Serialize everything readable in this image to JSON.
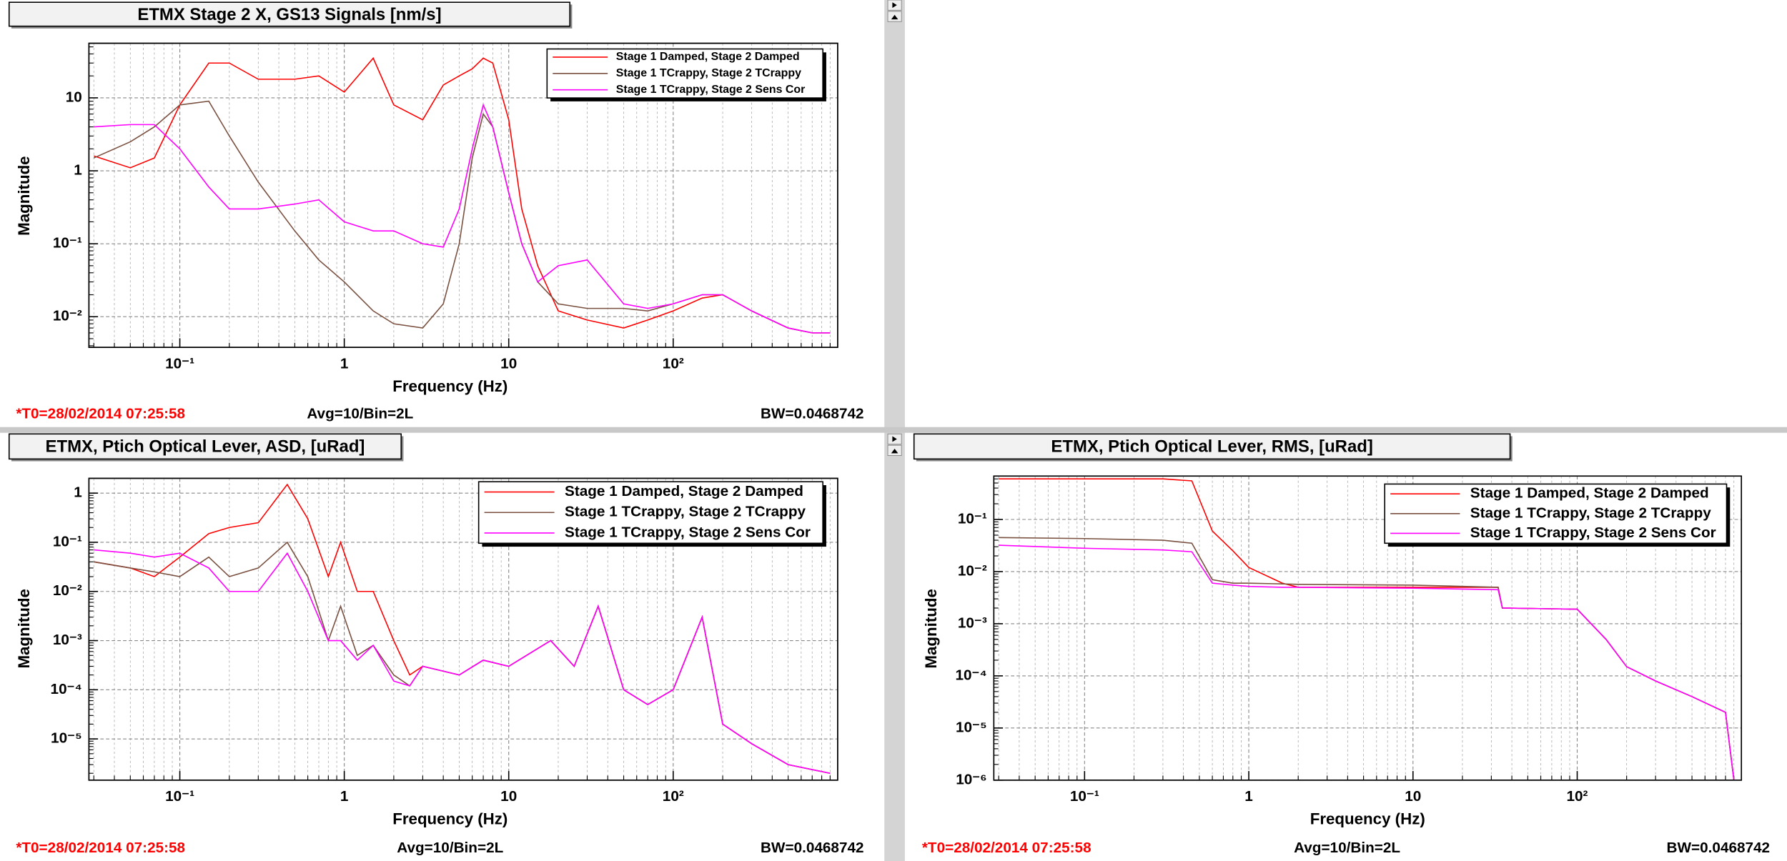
{
  "chart_data": [
    {
      "type": "line",
      "title": "ETMX Stage 2 X, GS13 Signals [nm/s]",
      "xlabel": "Frequency (Hz)",
      "ylabel": "Magnitude",
      "log_x": true,
      "log_y": true,
      "grid": true,
      "legend": "upper right",
      "xlim": [
        0.028,
        1000
      ],
      "ylim": [
        0.0038,
        56
      ],
      "xticks": [
        {
          "value": 0.1,
          "label": "10⁻¹"
        },
        1,
        10,
        {
          "value": 100,
          "label": "10²"
        }
      ],
      "yticks": [
        {
          "value": 0.01,
          "label": "10⁻²"
        },
        {
          "value": 0.1,
          "label": "10⁻¹"
        },
        1,
        10
      ],
      "x": [
        0.03,
        0.05,
        0.07,
        0.1,
        0.15,
        0.2,
        0.3,
        0.5,
        0.7,
        1,
        1.5,
        2,
        3,
        4,
        5,
        6,
        7,
        8,
        10,
        12,
        15,
        20,
        30,
        50,
        70,
        100,
        150,
        200,
        300,
        500,
        700,
        900
      ],
      "series": [
        {
          "name": "Stage 1 Damped, Stage 2 Damped",
          "color": "#ff0000",
          "values": [
            1.6,
            1.1,
            1.5,
            8,
            30,
            30,
            18,
            18,
            20,
            12,
            35,
            8,
            5,
            15,
            20,
            25,
            35,
            30,
            5,
            0.3,
            0.05,
            0.012,
            0.009,
            0.007,
            0.009,
            0.012,
            0.018,
            0.02,
            0.012,
            0.007,
            0.006,
            0.006
          ]
        },
        {
          "name": "Stage 1 TCrappy, Stage 2 TCrappy",
          "color": "#7a5040",
          "values": [
            1.5,
            2.5,
            4,
            8,
            9,
            3,
            0.7,
            0.15,
            0.06,
            0.03,
            0.012,
            0.008,
            0.007,
            0.015,
            0.1,
            1.5,
            6,
            4,
            0.5,
            0.1,
            0.03,
            0.015,
            0.013,
            0.013,
            0.012,
            0.015,
            0.02,
            0.02,
            0.012,
            0.007,
            0.006,
            0.006
          ]
        },
        {
          "name": "Stage 1 TCrappy, Stage 2 Sens Cor",
          "color": "#ff00ff",
          "values": [
            4,
            4.3,
            4.3,
            2,
            0.6,
            0.3,
            0.3,
            0.35,
            0.4,
            0.2,
            0.15,
            0.15,
            0.1,
            0.09,
            0.3,
            2,
            8,
            4,
            0.5,
            0.1,
            0.03,
            0.05,
            0.06,
            0.015,
            0.013,
            0.015,
            0.02,
            0.02,
            0.012,
            0.007,
            0.006,
            0.006
          ]
        }
      ],
      "t0": "*T0=28/02/2014 07:25:58",
      "avg": "Avg=10/Bin=2L",
      "bw": "BW=0.0468742"
    },
    {
      "type": "line",
      "title": "ETMX, Ptich Optical Lever, ASD, [uRad]",
      "xlabel": "Frequency (Hz)",
      "ylabel": "Magnitude",
      "log_x": true,
      "log_y": true,
      "grid": true,
      "legend": "upper right",
      "xlim": [
        0.028,
        1000
      ],
      "ylim": [
        1.45e-06,
        2
      ],
      "xticks": [
        {
          "value": 0.1,
          "label": "10⁻¹"
        },
        1,
        10,
        {
          "value": 100,
          "label": "10²"
        }
      ],
      "yticks": [
        {
          "value": 1e-05,
          "label": "10⁻⁵"
        },
        {
          "value": 0.0001,
          "label": "10⁻⁴"
        },
        {
          "value": 0.001,
          "label": "10⁻³"
        },
        {
          "value": 0.01,
          "label": "10⁻²"
        },
        {
          "value": 0.1,
          "label": "10⁻¹"
        },
        1
      ],
      "x": [
        0.03,
        0.05,
        0.07,
        0.1,
        0.15,
        0.2,
        0.3,
        0.45,
        0.6,
        0.8,
        0.95,
        1.2,
        1.5,
        2,
        2.5,
        3,
        5,
        7,
        10,
        18,
        25,
        35,
        50,
        70,
        100,
        150,
        200,
        300,
        500,
        900
      ],
      "series": [
        {
          "name": "Stage 1 Damped, Stage 2 Damped",
          "color": "#ff0000",
          "values": [
            0.04,
            0.03,
            0.02,
            0.05,
            0.15,
            0.2,
            0.25,
            1.5,
            0.3,
            0.02,
            0.1,
            0.01,
            0.01,
            0.001,
            0.0002,
            0.0003,
            0.0002,
            0.0004,
            0.0003,
            0.001,
            0.0003,
            0.005,
            0.0001,
            5e-05,
            0.0001,
            0.003,
            2e-05,
            8e-06,
            3e-06,
            2e-06
          ]
        },
        {
          "name": "Stage 1 TCrappy, Stage 2 TCrappy",
          "color": "#7a5040",
          "values": [
            0.04,
            0.03,
            0.025,
            0.02,
            0.05,
            0.02,
            0.03,
            0.1,
            0.02,
            0.001,
            0.005,
            0.0005,
            0.0008,
            0.0002,
            0.00012,
            0.0003,
            0.0002,
            0.0004,
            0.0003,
            0.001,
            0.0003,
            0.005,
            0.0001,
            5e-05,
            0.0001,
            0.003,
            2e-05,
            8e-06,
            3e-06,
            2e-06
          ]
        },
        {
          "name": "Stage 1 TCrappy, Stage 2 Sens Cor",
          "color": "#ff00ff",
          "values": [
            0.07,
            0.06,
            0.05,
            0.06,
            0.03,
            0.01,
            0.01,
            0.06,
            0.01,
            0.001,
            0.001,
            0.0004,
            0.0008,
            0.00015,
            0.00012,
            0.0003,
            0.0002,
            0.0004,
            0.0003,
            0.001,
            0.0003,
            0.005,
            0.0001,
            5e-05,
            0.0001,
            0.003,
            2e-05,
            8e-06,
            3e-06,
            2e-06
          ]
        }
      ],
      "t0": "*T0=28/02/2014 07:25:58",
      "avg": "Avg=10/Bin=2L",
      "bw": "BW=0.0468742"
    },
    {
      "type": "line",
      "title": "ETMX, Ptich Optical Lever, RMS, [uRad]",
      "xlabel": "Frequency (Hz)",
      "ylabel": "Magnitude",
      "log_x": true,
      "log_y": true,
      "grid": true,
      "legend": "upper right",
      "xlim": [
        0.028,
        1000
      ],
      "ylim": [
        1e-06,
        0.68
      ],
      "xticks": [
        {
          "value": 0.1,
          "label": "10⁻¹"
        },
        1,
        10,
        {
          "value": 100,
          "label": "10²"
        }
      ],
      "yticks": [
        {
          "value": 1e-06,
          "label": "10⁻⁶"
        },
        {
          "value": 1e-05,
          "label": "10⁻⁵"
        },
        {
          "value": 0.0001,
          "label": "10⁻⁴"
        },
        {
          "value": 0.001,
          "label": "10⁻³"
        },
        {
          "value": 0.01,
          "label": "10⁻²"
        },
        {
          "value": 0.1,
          "label": "10⁻¹"
        }
      ],
      "x": [
        0.03,
        0.1,
        0.3,
        0.45,
        0.6,
        0.8,
        1,
        1.6,
        2,
        10,
        33,
        35,
        100,
        150,
        200,
        300,
        500,
        800,
        900
      ],
      "series": [
        {
          "name": "Stage 1 Damped, Stage 2 Damped",
          "color": "#ff0000",
          "values": [
            0.6,
            0.6,
            0.6,
            0.55,
            0.06,
            0.025,
            0.012,
            0.006,
            0.005,
            0.005,
            0.005,
            0.002,
            0.0019,
            0.0005,
            0.00015,
            8e-05,
            4e-05,
            2e-05,
            1e-06
          ]
        },
        {
          "name": "Stage 1 TCrappy, Stage 2 TCrappy",
          "color": "#7a5040",
          "values": [
            0.045,
            0.043,
            0.04,
            0.035,
            0.007,
            0.006,
            0.006,
            0.0058,
            0.0057,
            0.0055,
            0.005,
            0.002,
            0.0019,
            0.0005,
            0.00015,
            8e-05,
            4e-05,
            2e-05,
            1e-06
          ]
        },
        {
          "name": "Stage 1 TCrappy, Stage 2 Sens Cor",
          "color": "#ff00ff",
          "values": [
            0.032,
            0.028,
            0.026,
            0.024,
            0.006,
            0.0055,
            0.0052,
            0.005,
            0.005,
            0.0048,
            0.0045,
            0.002,
            0.0019,
            0.0005,
            0.00015,
            8e-05,
            4e-05,
            2e-05,
            1e-06
          ]
        }
      ],
      "t0": "*T0=28/02/2014 07:25:58",
      "avg": "Avg=10/Bin=2L",
      "bw": "BW=0.0468742"
    }
  ]
}
